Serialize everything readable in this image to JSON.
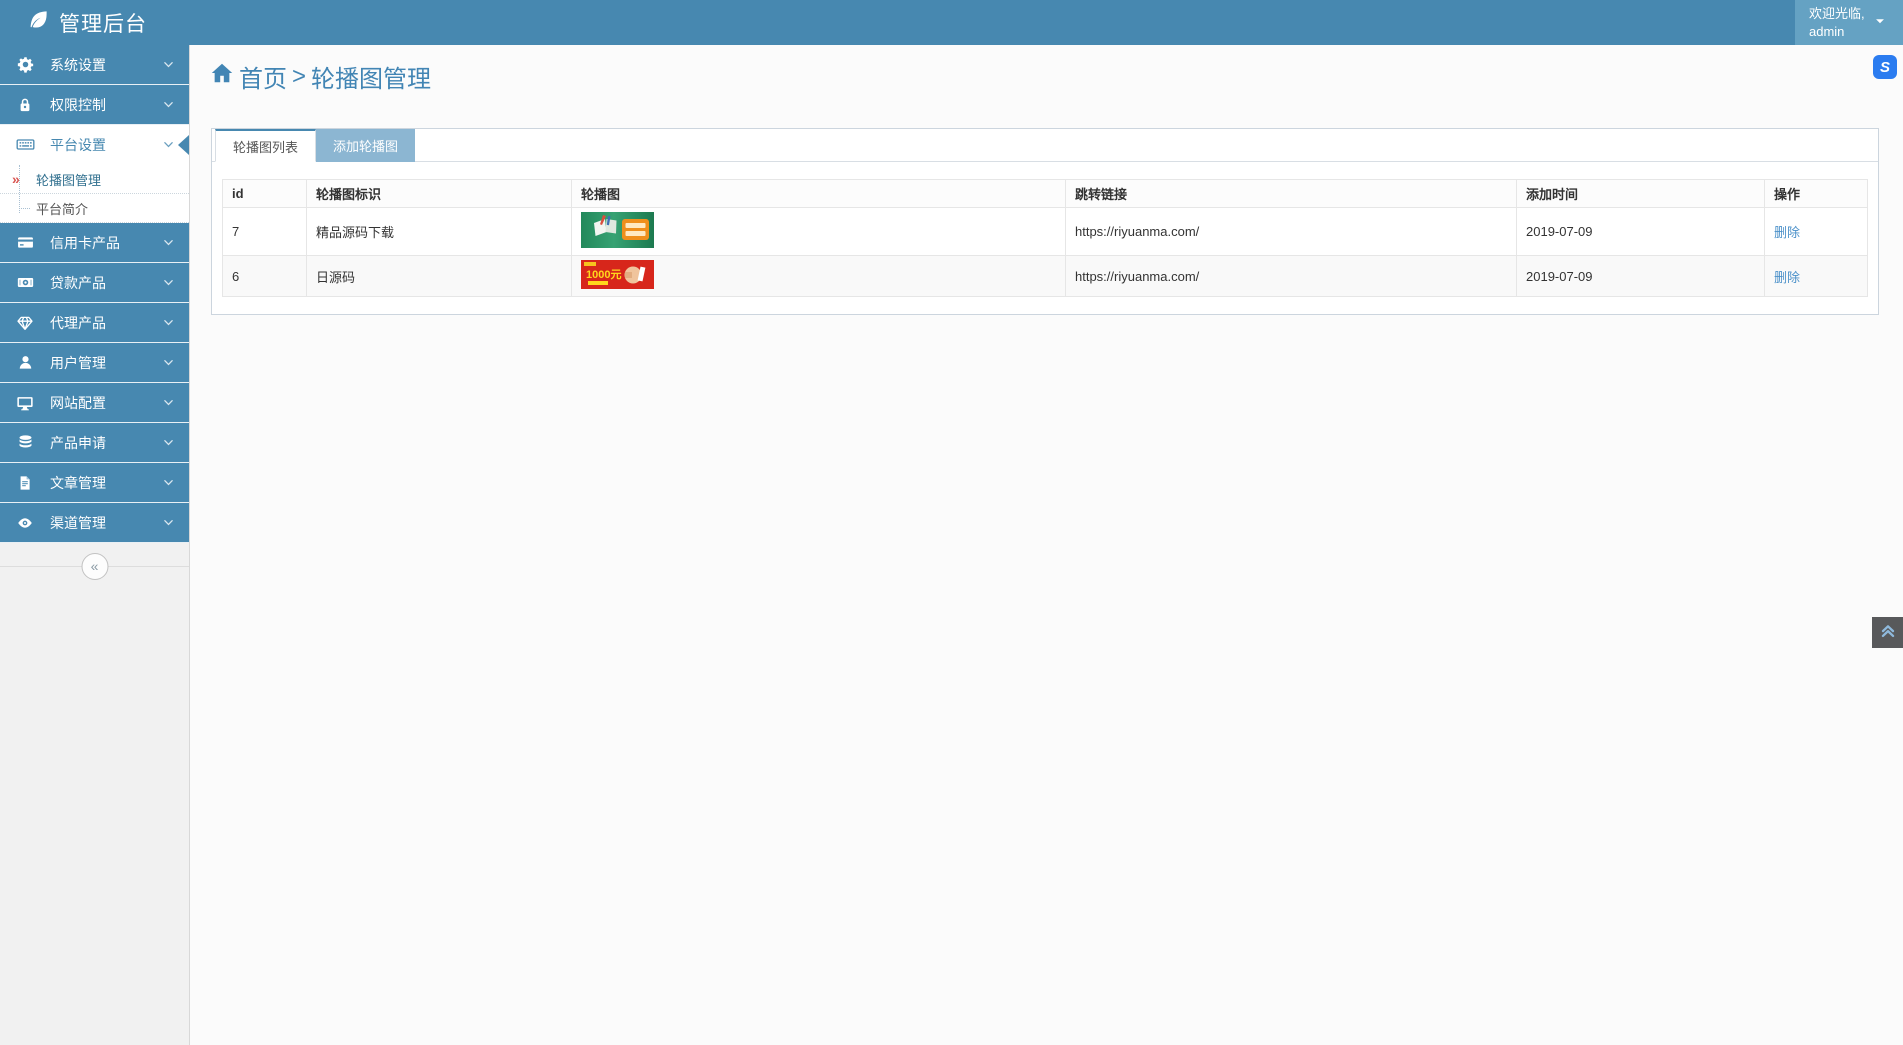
{
  "header": {
    "title": "管理后台",
    "welcome_line1": "欢迎光临,",
    "welcome_line2": "admin"
  },
  "breadcrumb": {
    "home": "首页",
    "separator": ">",
    "current": "轮播图管理"
  },
  "sidebar": {
    "items": [
      {
        "label": "系统设置",
        "icon": "gear-icon",
        "expanded": false
      },
      {
        "label": "权限控制",
        "icon": "lock-icon",
        "expanded": false
      },
      {
        "label": "平台设置",
        "icon": "keyboard-icon",
        "expanded": true
      },
      {
        "label": "信用卡产品",
        "icon": "credit-card-icon",
        "expanded": false
      },
      {
        "label": "贷款产品",
        "icon": "banknote-icon",
        "expanded": false
      },
      {
        "label": "代理产品",
        "icon": "diamond-icon",
        "expanded": false
      },
      {
        "label": "用户管理",
        "icon": "user-icon",
        "expanded": false
      },
      {
        "label": "网站配置",
        "icon": "monitor-icon",
        "expanded": false
      },
      {
        "label": "产品申请",
        "icon": "database-icon",
        "expanded": false
      },
      {
        "label": "文章管理",
        "icon": "document-icon",
        "expanded": false
      },
      {
        "label": "渠道管理",
        "icon": "eye-icon",
        "expanded": false
      }
    ],
    "submenu": [
      {
        "label": "轮播图管理",
        "active": true,
        "marker_icon": "double-angle-right-icon"
      },
      {
        "label": "平台简介",
        "active": false
      }
    ],
    "collapse_glyph": "«"
  },
  "tabs": [
    {
      "label": "轮播图列表",
      "active": true
    },
    {
      "label": "添加轮播图",
      "active": false
    }
  ],
  "table": {
    "columns": [
      "id",
      "轮播图标识",
      "轮播图",
      "跳转链接",
      "添加时间",
      "操作"
    ],
    "rows": [
      {
        "id": "7",
        "title": "精品源码下载",
        "thumb": "green-book-promo-banner",
        "link": "https://riyuanma.com/",
        "date": "2019-07-09",
        "action": "删除"
      },
      {
        "id": "6",
        "title": "日源码",
        "thumb": "red-1000yuan-fist-banner",
        "thumb_text": "1000元",
        "link": "https://riyuanma.com/",
        "date": "2019-07-09",
        "action": "删除"
      }
    ]
  },
  "colors": {
    "header_blue": "#4788b0",
    "user_menu_blue": "#65a2c3",
    "tab_inactive_blue": "#8cb6d2",
    "link_blue": "#4a90c9",
    "active_marker_red": "#d9534f",
    "s_icon_blue": "#2b7cf0",
    "back_top_gray": "#58595b"
  }
}
